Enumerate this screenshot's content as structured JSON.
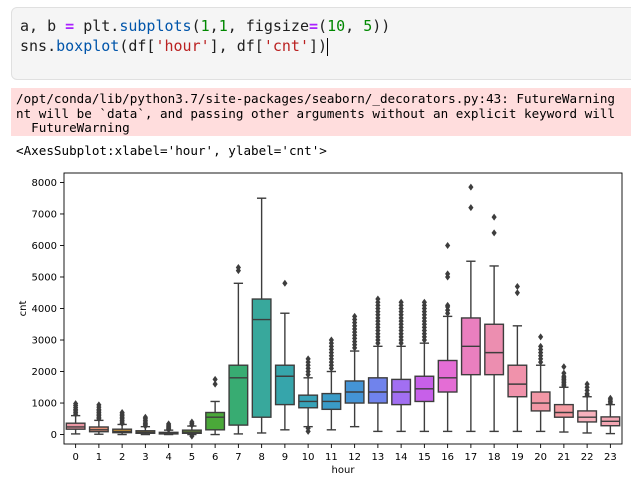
{
  "cell": {
    "line1": {
      "t1": "a, b ",
      "eq": "=",
      "t2": " plt.",
      "fn": "subplots",
      "t3": "(",
      "n1": "1",
      "t4": ",",
      "n2": "1",
      "t5": ", figsize",
      "eq2": "=",
      "t6": "(",
      "n3": "10",
      "t7": ", ",
      "n4": "5",
      "t8": "))"
    },
    "line2": {
      "t1": "sns.",
      "fn": "boxplot",
      "t2": "(df[",
      "s1": "'hour'",
      "t3": "], df[",
      "s2": "'cnt'",
      "t4": "])"
    }
  },
  "stderr": {
    "line1": "/opt/conda/lib/python3.7/site-packages/seaborn/_decorators.py:43: FutureWarning",
    "line2": "nt will be `data`, and passing other arguments without an explicit keyword will",
    "line3": "  FutureWarning"
  },
  "output": {
    "repr": "<AxesSubplot:xlabel='hour', ylabel='cnt'>"
  },
  "chart_data": {
    "type": "box",
    "xlabel": "hour",
    "ylabel": "cnt",
    "ylim": [
      -300,
      8300
    ],
    "yticks": [
      0,
      1000,
      2000,
      3000,
      4000,
      5000,
      6000,
      7000,
      8000
    ],
    "categories": [
      "0",
      "1",
      "2",
      "3",
      "4",
      "5",
      "6",
      "7",
      "8",
      "9",
      "10",
      "11",
      "12",
      "13",
      "14",
      "15",
      "16",
      "17",
      "18",
      "19",
      "20",
      "21",
      "22",
      "23"
    ],
    "colors": [
      "#ea96a3",
      "#e59177",
      "#d49834",
      "#b9a136",
      "#9ea636",
      "#7aae36",
      "#4aa839",
      "#38ac72",
      "#38a89c",
      "#36a5ab",
      "#37a2b8",
      "#3a9bc7",
      "#4494d6",
      "#7083ec",
      "#a26ff2",
      "#c760e9",
      "#e46dd5",
      "#ea7fbf",
      "#ec8eb0",
      "#f092ab",
      "#f397a6",
      "#f49aa1",
      "#f7b2bd",
      "#f3a6b3"
    ],
    "boxes": [
      {
        "q1": 170,
        "med": 240,
        "q3": 360,
        "wlo": 20,
        "whi": 600,
        "fliers": [
          650,
          700,
          750,
          800,
          860,
          920,
          980
        ]
      },
      {
        "q1": 90,
        "med": 150,
        "q3": 240,
        "wlo": 10,
        "whi": 450,
        "fliers": [
          500,
          550,
          600,
          650,
          700,
          750,
          800,
          870,
          940
        ]
      },
      {
        "q1": 60,
        "med": 100,
        "q3": 170,
        "wlo": 0,
        "whi": 320,
        "fliers": [
          350,
          400,
          450,
          500,
          550,
          600,
          650,
          700
        ]
      },
      {
        "q1": 40,
        "med": 70,
        "q3": 120,
        "wlo": 0,
        "whi": 250,
        "fliers": [
          270,
          310,
          350,
          400,
          450,
          500,
          550
        ]
      },
      {
        "q1": 20,
        "med": 40,
        "q3": 70,
        "wlo": 0,
        "whi": 140,
        "fliers": [
          160,
          190,
          220,
          260,
          300,
          340
        ]
      },
      {
        "q1": 40,
        "med": 80,
        "q3": 140,
        "wlo": 0,
        "whi": 270,
        "fliers": [
          300,
          350,
          400,
          -50
        ]
      },
      {
        "q1": 150,
        "med": 550,
        "q3": 700,
        "wlo": 0,
        "whi": 1050,
        "fliers": [
          1600,
          1750
        ]
      },
      {
        "q1": 300,
        "med": 1800,
        "q3": 2200,
        "wlo": 20,
        "whi": 4800,
        "fliers": [
          5200,
          5300
        ]
      },
      {
        "q1": 550,
        "med": 3650,
        "q3": 4300,
        "wlo": 50,
        "whi": 7500,
        "fliers": []
      },
      {
        "q1": 950,
        "med": 1850,
        "q3": 2200,
        "wlo": 150,
        "whi": 3850,
        "fliers": [
          4800
        ]
      },
      {
        "q1": 850,
        "med": 1050,
        "q3": 1250,
        "wlo": 250,
        "whi": 1800,
        "fliers": [
          1900,
          2000,
          2100,
          2200,
          2300,
          2400,
          200,
          100
        ]
      },
      {
        "q1": 800,
        "med": 1050,
        "q3": 1300,
        "wlo": 150,
        "whi": 2000,
        "fliers": [
          2100,
          2200,
          2300,
          2400,
          2500,
          2600,
          2700,
          2800,
          2900,
          3000
        ]
      },
      {
        "q1": 1000,
        "med": 1350,
        "q3": 1700,
        "wlo": 250,
        "whi": 2650,
        "fliers": [
          2750,
          2850,
          2950,
          3050,
          3150,
          3250,
          3350,
          3450,
          3550,
          3650,
          3750
        ]
      },
      {
        "q1": 1000,
        "med": 1350,
        "q3": 1800,
        "wlo": 100,
        "whi": 2800,
        "fliers": [
          2900,
          3000,
          3100,
          3200,
          3300,
          3400,
          3500,
          3600,
          3700,
          3800,
          3900,
          4000,
          4100,
          4200,
          4300
        ]
      },
      {
        "q1": 950,
        "med": 1350,
        "q3": 1750,
        "wlo": 100,
        "whi": 2800,
        "fliers": [
          2900,
          3000,
          3100,
          3200,
          3300,
          3400,
          3500,
          3600,
          3700,
          3800,
          3900,
          4000,
          4100,
          4200
        ]
      },
      {
        "q1": 1050,
        "med": 1450,
        "q3": 1850,
        "wlo": 100,
        "whi": 2900,
        "fliers": [
          3000,
          3100,
          3200,
          3300,
          3400,
          3500,
          3600,
          3700,
          3800,
          3900,
          4000,
          4100,
          4200
        ]
      },
      {
        "q1": 1350,
        "med": 1800,
        "q3": 2350,
        "wlo": 100,
        "whi": 3750,
        "fliers": [
          3850,
          3950,
          4050,
          4100,
          5000,
          5100,
          6000
        ]
      },
      {
        "q1": 1900,
        "med": 2800,
        "q3": 3700,
        "wlo": 100,
        "whi": 5500,
        "fliers": [
          7200,
          7850
        ]
      },
      {
        "q1": 1900,
        "med": 2600,
        "q3": 3500,
        "wlo": 100,
        "whi": 5350,
        "fliers": [
          6400,
          6900
        ]
      },
      {
        "q1": 1200,
        "med": 1600,
        "q3": 2200,
        "wlo": 100,
        "whi": 3450,
        "fliers": [
          4500,
          4700
        ]
      },
      {
        "q1": 750,
        "med": 1000,
        "q3": 1350,
        "wlo": 100,
        "whi": 2200,
        "fliers": [
          2300,
          2400,
          2500,
          2600,
          2700,
          2800,
          3100
        ]
      },
      {
        "q1": 550,
        "med": 700,
        "q3": 950,
        "wlo": 80,
        "whi": 1500,
        "fliers": [
          1550,
          1600,
          1650,
          1700,
          1750,
          1800,
          1850,
          1950,
          2150
        ]
      },
      {
        "q1": 400,
        "med": 550,
        "q3": 750,
        "wlo": 50,
        "whi": 1200,
        "fliers": [
          1250,
          1300,
          1400,
          1500,
          1600
        ]
      },
      {
        "q1": 280,
        "med": 420,
        "q3": 560,
        "wlo": 30,
        "whi": 950,
        "fliers": [
          1000,
          1050,
          1100,
          1150
        ]
      }
    ]
  }
}
